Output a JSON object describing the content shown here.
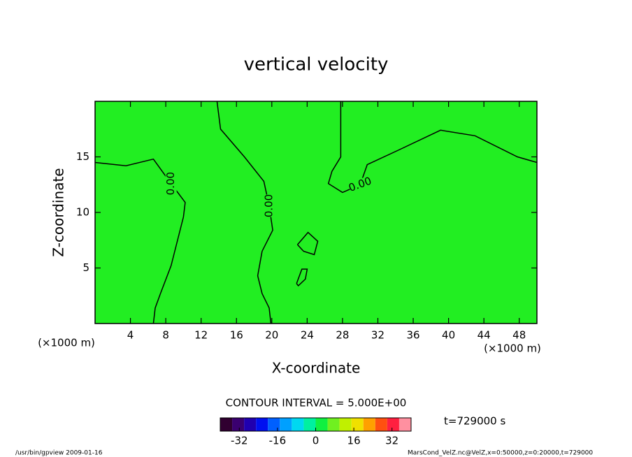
{
  "chart_data": {
    "type": "contour",
    "title": "vertical velocity",
    "x_label": "X-coordinate",
    "y_label": "Z-coordinate",
    "x_unit": "(×1000 m)",
    "y_unit": "(×1000 m)",
    "xlim": [
      0,
      50
    ],
    "ylim": [
      0,
      20
    ],
    "xticks": [
      4,
      8,
      12,
      16,
      20,
      24,
      28,
      32,
      36,
      40,
      44,
      48
    ],
    "yticks": [
      5,
      10,
      15
    ],
    "fill_color": "#22ee22",
    "line_color": "#000000",
    "contours": [
      {
        "label": "0.00",
        "x": [
          0,
          3.5,
          6.6,
          8.6,
          10.2,
          10,
          8.6,
          7.4,
          6.8,
          6.6
        ],
        "y": [
          14.5,
          14.2,
          14.8,
          12.6,
          10.9,
          9.6,
          5.2,
          2.7,
          1.4,
          0
        ]
      },
      {
        "label": "0.00",
        "x": [
          13.8,
          14.2,
          16.9,
          19.1,
          19.7,
          20.1,
          18.9,
          18.4,
          18.9,
          19.7,
          19.9
        ],
        "y": [
          20,
          17.5,
          15,
          12.8,
          10.6,
          8.4,
          6.5,
          4.3,
          2.7,
          1.4,
          0
        ]
      },
      {
        "label": "0.00",
        "x": [
          27.8,
          27.8,
          26.8,
          26.4,
          28,
          30,
          30.8,
          34.3,
          39.1,
          43,
          47.8,
          50
        ],
        "y": [
          20,
          15,
          13.7,
          12.6,
          11.8,
          12.5,
          14.3,
          15.6,
          17.4,
          16.9,
          15,
          14.5
        ]
      },
      {
        "x": [
          22.9,
          24.1,
          25.2,
          24.8,
          23.6,
          22.9
        ],
        "y": [
          7.1,
          8.2,
          7.4,
          6.2,
          6.5,
          7.1
        ]
      },
      {
        "x": [
          22.8,
          23.4,
          24,
          23.8,
          23,
          22.8
        ],
        "y": [
          3.6,
          4.9,
          4.9,
          4,
          3.4,
          3.6
        ]
      }
    ],
    "contour_interval_text": "CONTOUR INTERVAL = 5.000E+00",
    "time_text": "t=729000 s",
    "colorbar": {
      "lim": [
        -40,
        40
      ],
      "ticks": [
        -32,
        -16,
        0,
        16,
        32
      ],
      "levels": [
        -40,
        -35,
        -30,
        -25,
        -20,
        -15,
        -10,
        -5,
        0,
        5,
        10,
        15,
        20,
        25,
        30,
        35,
        40
      ],
      "colors": [
        "#300030",
        "#3a0070",
        "#2000b0",
        "#0010f0",
        "#0060ff",
        "#00a0ff",
        "#00d8f0",
        "#00f0a0",
        "#10f040",
        "#70f020",
        "#c0f000",
        "#f0e000",
        "#ffa000",
        "#ff5010",
        "#ff2040",
        "#ff90a0"
      ]
    },
    "footer_left": "/usr/bin/gpview  2009-01-16",
    "footer_right": "MarsCond_VelZ.nc@VelZ,x=0:50000,z=0:20000,t=729000"
  }
}
